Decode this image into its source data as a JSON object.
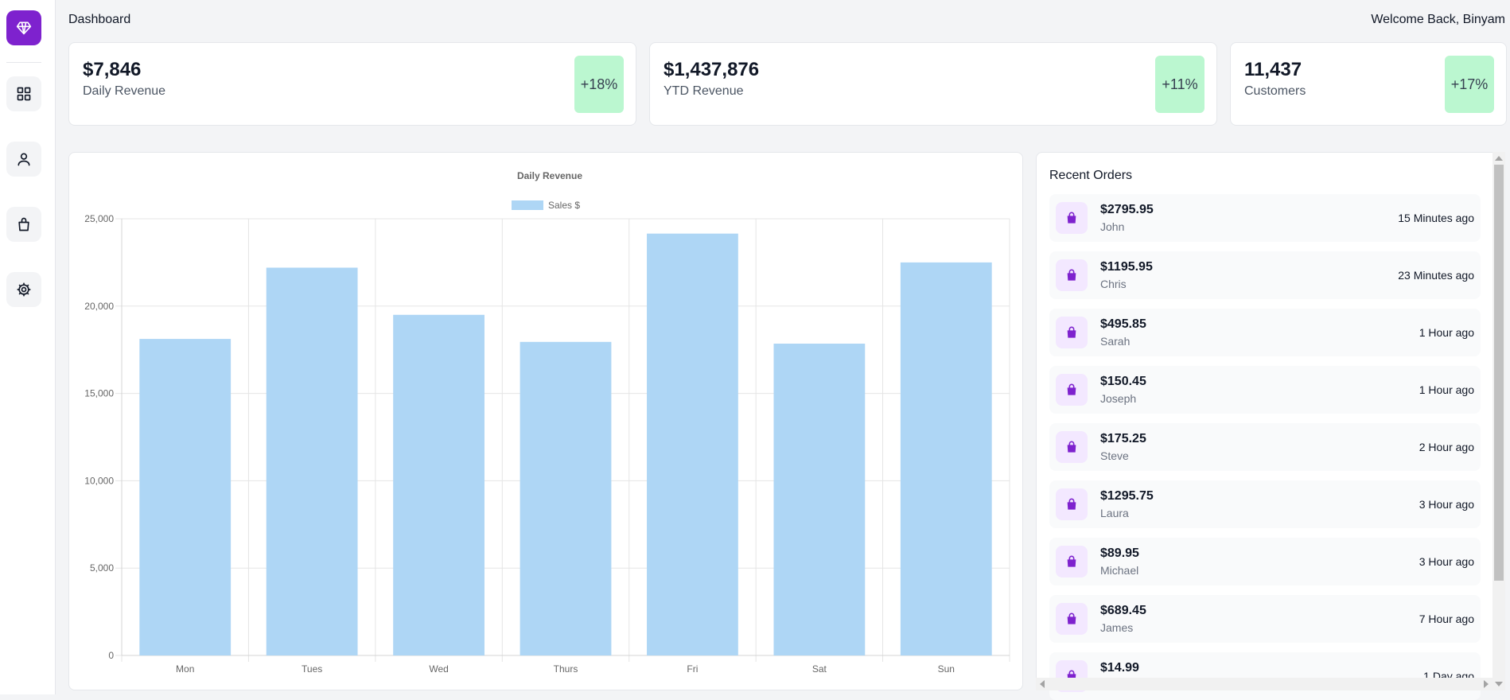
{
  "header": {
    "title": "Dashboard",
    "welcome": "Welcome Back, Binyam"
  },
  "sidebar": {
    "items": [
      {
        "icon": "diamond-icon"
      },
      {
        "icon": "grid-icon"
      },
      {
        "icon": "user-icon"
      },
      {
        "icon": "shopping-bag-icon"
      },
      {
        "icon": "gear-icon"
      }
    ],
    "brand_color": "#7e22ce"
  },
  "stats": [
    {
      "value": "$7,846",
      "label": "Daily Revenue",
      "change": "+18%"
    },
    {
      "value": "$1,437,876",
      "label": "YTD Revenue",
      "change": "+11%"
    },
    {
      "value": "11,437",
      "label": "Customers",
      "change": "+17%"
    }
  ],
  "chart_data": {
    "type": "bar",
    "title": "Daily Revenue",
    "categories": [
      "Mon",
      "Tues",
      "Wed",
      "Thurs",
      "Fri",
      "Sat",
      "Sun"
    ],
    "series": [
      {
        "name": "Sales $",
        "values": [
          18120,
          22200,
          19500,
          17950,
          24150,
          17850,
          22500
        ],
        "color": "#aed6f5"
      }
    ],
    "ylim": [
      0,
      25000
    ],
    "yticks": [
      "0",
      "5,000",
      "10,000",
      "15,000",
      "20,000",
      "25,000"
    ],
    "ytick_values": [
      0,
      5000,
      10000,
      15000,
      20000,
      25000
    ],
    "grid": true,
    "legend": "top"
  },
  "orders": {
    "title": "Recent Orders",
    "items": [
      {
        "amount": "$2795.95",
        "name": "John",
        "time": "15 Minutes ago"
      },
      {
        "amount": "$1195.95",
        "name": "Chris",
        "time": "23 Minutes ago"
      },
      {
        "amount": "$495.85",
        "name": "Sarah",
        "time": "1 Hour ago"
      },
      {
        "amount": "$150.45",
        "name": "Joseph",
        "time": "1 Hour ago"
      },
      {
        "amount": "$175.25",
        "name": "Steve",
        "time": "2 Hour ago"
      },
      {
        "amount": "$1295.75",
        "name": "Laura",
        "time": "3 Hour ago"
      },
      {
        "amount": "$89.95",
        "name": "Michael",
        "time": "3 Hour ago"
      },
      {
        "amount": "$689.45",
        "name": "James",
        "time": "7 Hour ago"
      },
      {
        "amount": "$14.99",
        "name": "",
        "time": "1 Day ago"
      }
    ],
    "icon": "shopping-bag-icon",
    "icon_color": "#7e22ce"
  }
}
